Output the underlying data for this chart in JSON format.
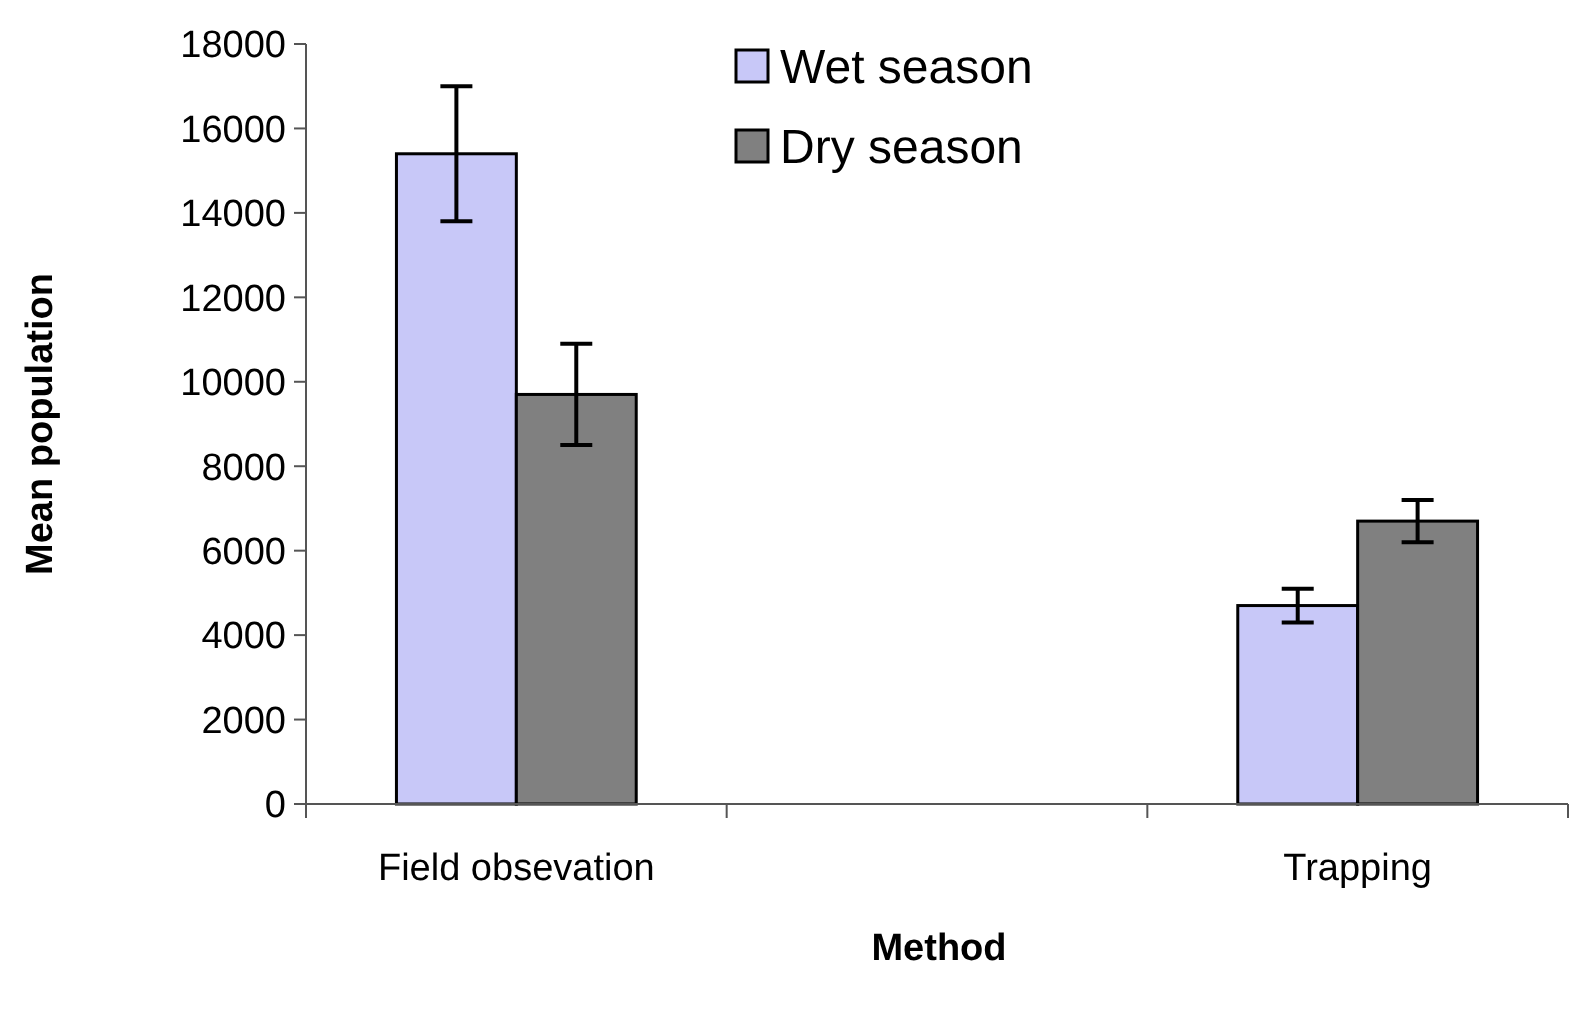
{
  "chart_data": {
    "type": "bar",
    "xlabel": "Method",
    "ylabel": "Mean population",
    "categories": [
      "Field obsevation",
      null,
      "Trapping"
    ],
    "series": [
      {
        "name": "Wet season",
        "color": "#c8c8f8",
        "values": [
          15400,
          null,
          4700
        ],
        "errors": [
          1600,
          null,
          400
        ]
      },
      {
        "name": "Dry season",
        "color": "#808080",
        "values": [
          9700,
          null,
          6700
        ],
        "errors": [
          1200,
          null,
          500
        ]
      }
    ],
    "ylim": [
      0,
      18000
    ],
    "yticks": [
      0,
      2000,
      4000,
      6000,
      8000,
      10000,
      12000,
      14000,
      16000,
      18000
    ],
    "grid": false,
    "legend": "top"
  }
}
